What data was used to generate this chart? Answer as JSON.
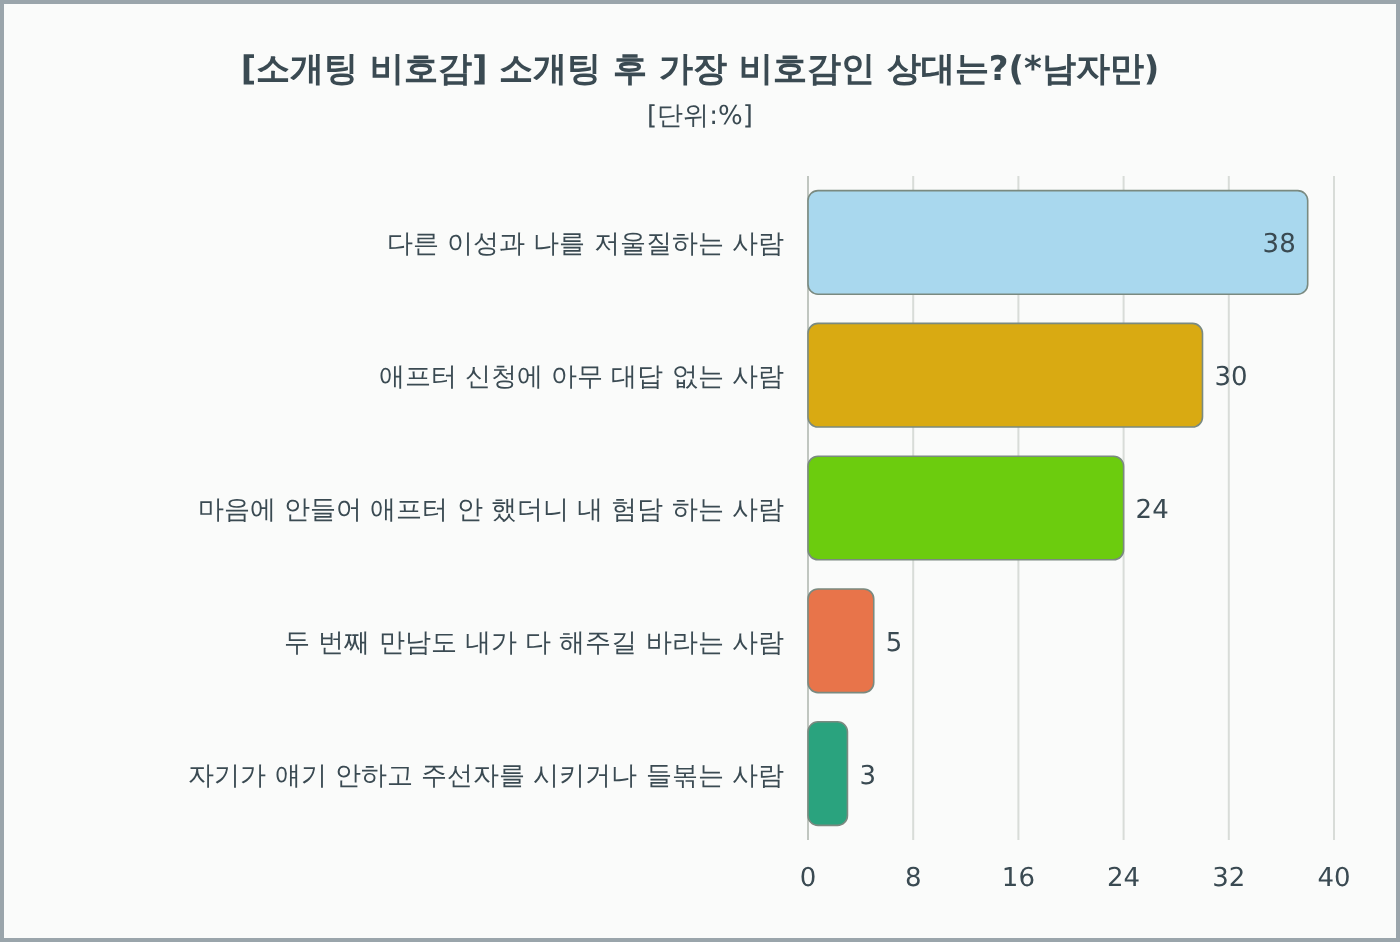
{
  "chart_data": {
    "type": "bar",
    "orientation": "horizontal",
    "title": "[소개팅 비호감] 소개팅 후 가장 비호감인 상대는?(*남자만)",
    "subtitle": "[단위:%]",
    "categories": [
      "다른 이성과 나를 저울질하는 사람",
      "애프터 신청에 아무 대답 없는 사람",
      "마음에 안들어 애프터 안 했더니 내 험담 하는 사람",
      "두 번째 만남도 내가 다 해주길 바라는 사람",
      "자기가 얘기 안하고 주선자를 시키거나 들볶는 사람"
    ],
    "values": [
      38,
      30,
      24,
      5,
      3
    ],
    "colors": [
      "#a9d8ee",
      "#d9aa12",
      "#6ccc0e",
      "#e8744a",
      "#2aa37e"
    ],
    "xlim": [
      0,
      40
    ],
    "xticks": [
      0,
      8,
      16,
      24,
      32,
      40
    ],
    "grid": "x",
    "data_labels": true
  }
}
